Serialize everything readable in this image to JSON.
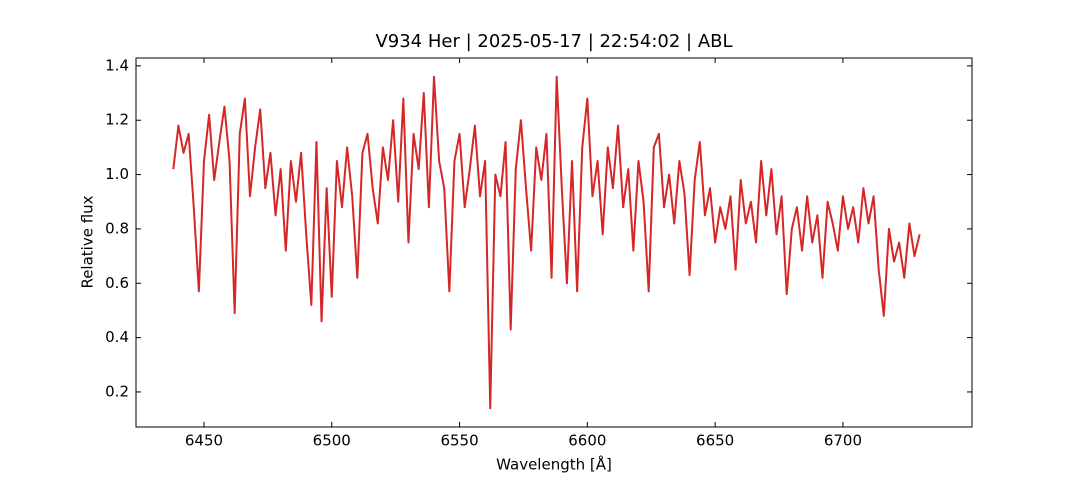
{
  "chart_data": {
    "type": "line",
    "title": "V934 Her | 2025-05-17 | 22:54:02 | ABL",
    "xlabel": "Wavelength [Å]",
    "ylabel": "Relative flux",
    "color": "#d62728",
    "x": [
      6438,
      6440,
      6442,
      6444,
      6446,
      6448,
      6450,
      6452,
      6454,
      6456,
      6458,
      6460,
      6462,
      6464,
      6466,
      6468,
      6470,
      6472,
      6474,
      6476,
      6478,
      6480,
      6482,
      6484,
      6486,
      6488,
      6490,
      6492,
      6494,
      6496,
      6498,
      6500,
      6502,
      6504,
      6506,
      6508,
      6510,
      6512,
      6514,
      6516,
      6518,
      6520,
      6522,
      6524,
      6526,
      6528,
      6530,
      6532,
      6534,
      6536,
      6538,
      6540,
      6542,
      6544,
      6546,
      6548,
      6550,
      6552,
      6554,
      6556,
      6558,
      6560,
      6562,
      6564,
      6566,
      6568,
      6570,
      6572,
      6574,
      6576,
      6578,
      6580,
      6582,
      6584,
      6586,
      6588,
      6590,
      6592,
      6594,
      6596,
      6598,
      6600,
      6602,
      6604,
      6606,
      6608,
      6610,
      6612,
      6614,
      6616,
      6618,
      6620,
      6622,
      6624,
      6626,
      6628,
      6630,
      6632,
      6634,
      6636,
      6638,
      6640,
      6642,
      6644,
      6646,
      6648,
      6650,
      6652,
      6654,
      6656,
      6658,
      6660,
      6662,
      6664,
      6666,
      6668,
      6670,
      6672,
      6674,
      6676,
      6678,
      6680,
      6682,
      6684,
      6686,
      6688,
      6690,
      6692,
      6694,
      6696,
      6698,
      6700,
      6702,
      6704,
      6706,
      6708,
      6710,
      6712,
      6714,
      6716,
      6718,
      6720,
      6722,
      6724,
      6726,
      6728,
      6730
    ],
    "values": [
      1.02,
      1.18,
      1.08,
      1.15,
      0.88,
      0.57,
      1.05,
      1.22,
      0.98,
      1.12,
      1.25,
      1.05,
      0.49,
      1.15,
      1.28,
      0.92,
      1.1,
      1.24,
      0.95,
      1.08,
      0.85,
      1.02,
      0.72,
      1.05,
      0.9,
      1.08,
      0.78,
      0.52,
      1.12,
      0.46,
      0.95,
      0.55,
      1.05,
      0.88,
      1.1,
      0.92,
      0.62,
      1.08,
      1.15,
      0.95,
      0.82,
      1.1,
      0.98,
      1.2,
      0.9,
      1.28,
      0.75,
      1.15,
      1.02,
      1.3,
      0.88,
      1.36,
      1.05,
      0.95,
      0.57,
      1.05,
      1.15,
      0.88,
      1.02,
      1.18,
      0.92,
      1.05,
      0.14,
      1.0,
      0.92,
      1.12,
      0.43,
      1.02,
      1.2,
      0.95,
      0.72,
      1.1,
      0.98,
      1.15,
      0.62,
      1.36,
      0.95,
      0.6,
      1.05,
      0.57,
      1.1,
      1.28,
      0.92,
      1.05,
      0.78,
      1.1,
      0.95,
      1.18,
      0.88,
      1.02,
      0.72,
      1.05,
      0.9,
      0.57,
      1.1,
      1.15,
      0.88,
      1.0,
      0.82,
      1.05,
      0.93,
      0.63,
      0.98,
      1.12,
      0.85,
      0.95,
      0.75,
      0.88,
      0.8,
      0.92,
      0.65,
      0.98,
      0.82,
      0.9,
      0.75,
      1.05,
      0.85,
      1.02,
      0.78,
      0.92,
      0.56,
      0.8,
      0.88,
      0.72,
      0.92,
      0.75,
      0.85,
      0.62,
      0.9,
      0.82,
      0.72,
      0.92,
      0.8,
      0.88,
      0.75,
      0.95,
      0.82,
      0.92,
      0.65,
      0.48,
      0.8,
      0.68,
      0.75,
      0.62,
      0.82,
      0.7,
      0.78
    ],
    "xlim": [
      6423.4,
      6750.5
    ],
    "ylim": [
      0.071,
      1.429
    ],
    "xticks": [
      6450,
      6500,
      6550,
      6600,
      6650,
      6700
    ],
    "yticks": [
      0.2,
      0.4,
      0.6,
      0.8,
      {
        "value": 1,
        "label": "1.0"
      },
      1.2,
      1.4
    ]
  }
}
